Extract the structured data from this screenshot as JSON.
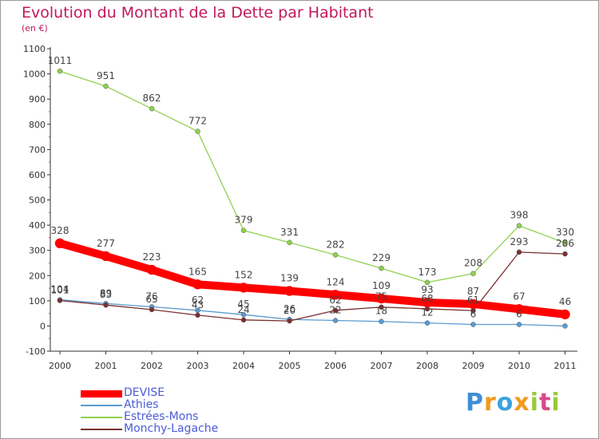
{
  "chart_data": {
    "type": "line",
    "title": "Evolution du Montant de la Dette par Habitant",
    "unit_label": "(en €)",
    "xlabel": "",
    "ylabel": "",
    "ylim": [
      -100,
      1100
    ],
    "yticks": [
      -100,
      0,
      100,
      200,
      300,
      400,
      500,
      600,
      700,
      800,
      900,
      1000,
      1100
    ],
    "categories": [
      "2000",
      "2001",
      "2002",
      "2003",
      "2004",
      "2005",
      "2006",
      "2007",
      "2008",
      "2009",
      "2010",
      "2011"
    ],
    "grid": false,
    "legend_position": "bottom-left",
    "series": [
      {
        "name": "DEVISE",
        "color": "#ff0000",
        "values": [
          328,
          277,
          223,
          165,
          152,
          139,
          124,
          109,
          93,
          87,
          67,
          46
        ],
        "labels": [
          "328",
          "277",
          "223",
          "165",
          "152",
          "139",
          "124",
          "109",
          "93",
          "87",
          "67",
          "46"
        ],
        "emphasis": true
      },
      {
        "name": "Athies",
        "color": "#5b9bd0",
        "values": [
          104,
          89,
          76,
          62,
          45,
          26,
          22,
          18,
          12,
          6,
          6,
          0
        ],
        "labels": [
          "104",
          "89",
          "76",
          "62",
          "45",
          "26",
          "22",
          "18",
          "12",
          "6",
          "6",
          ""
        ]
      },
      {
        "name": "Estrées-Mons",
        "color": "#8fd14f",
        "values": [
          1011,
          951,
          862,
          772,
          379,
          331,
          282,
          229,
          173,
          208,
          398,
          330
        ],
        "labels": [
          "1011",
          "951",
          "862",
          "772",
          "379",
          "331",
          "282",
          "229",
          "173",
          "208",
          "398",
          "330"
        ]
      },
      {
        "name": "Monchy-Lagache",
        "color": "#7a2f2f",
        "values": [
          101,
          83,
          65,
          43,
          24,
          20,
          62,
          75,
          68,
          61,
          293,
          286
        ],
        "labels": [
          "101",
          "83",
          "65",
          "43",
          "24",
          "20",
          "62",
          "75",
          "68",
          "61",
          "293",
          "286"
        ]
      }
    ]
  },
  "logo": {
    "letters": [
      "P",
      "r",
      "o",
      "x",
      "i",
      "t",
      "i"
    ]
  }
}
